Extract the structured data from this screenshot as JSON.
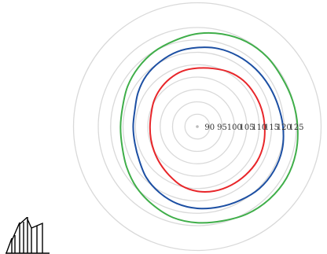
{
  "chart_data": {
    "type": "polar-line",
    "title": "",
    "radial_axis": {
      "min": 85,
      "max": 135,
      "ticks": [
        90,
        95,
        100,
        105,
        110,
        115,
        120,
        125
      ],
      "tick_labels": [
        "90",
        "95",
        "100",
        "105",
        "110",
        "115",
        "120",
        "125"
      ],
      "grid": true,
      "grid_color": "#d9d9d9"
    },
    "theta_deg": [
      0,
      15,
      30,
      45,
      60,
      75,
      90,
      105,
      120,
      135,
      150,
      165,
      180,
      195,
      210,
      225,
      240,
      255,
      270,
      285,
      300,
      315,
      330,
      345
    ],
    "series": [
      {
        "color": "#e8262a",
        "values": [
          112.2,
          111.9,
          111.6,
          111.3,
          110.5,
          109.3,
          108.6,
          108.2,
          107.3,
          106.3,
          105.3,
          104.3,
          104.1,
          104.4,
          105.1,
          106.2,
          107.7,
          109.7,
          111.1,
          111.9,
          112.3,
          112.6,
          112.9,
          112.7
        ]
      },
      {
        "color": "#1c4fa3",
        "values": [
          119.6,
          118.7,
          118.3,
          118.1,
          117.9,
          117.6,
          116.9,
          116.3,
          115.2,
          114.1,
          112.6,
          111.1,
          110.9,
          111.1,
          112.1,
          114.1,
          115.7,
          117.1,
          118.0,
          118.6,
          119.4,
          120.4,
          120.7,
          120.5
        ]
      },
      {
        "color": "#3fae49",
        "values": [
          125.5,
          124.9,
          124.5,
          124.8,
          124.6,
          123.7,
          122.5,
          120.9,
          119.9,
          118.7,
          117.5,
          116.2,
          116.0,
          116.4,
          117.9,
          119.7,
          121.3,
          123.0,
          123.8,
          124.4,
          125.6,
          126.3,
          126.6,
          126.2
        ]
      }
    ]
  },
  "logo": {
    "icon": "stacked-bars-logo-icon",
    "color": "#000000"
  }
}
